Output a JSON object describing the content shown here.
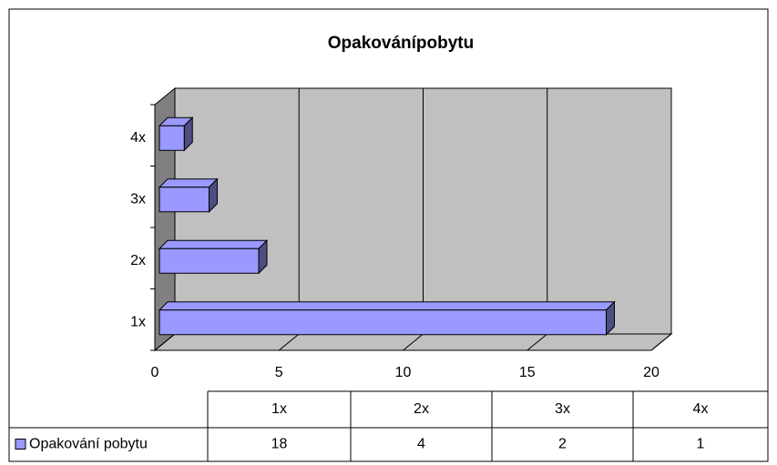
{
  "chart_data": {
    "type": "bar",
    "orientation": "horizontal",
    "three_d": true,
    "title": "Opakovánípobytu",
    "categories": [
      "1x",
      "2x",
      "3x",
      "4x"
    ],
    "series": [
      {
        "name": "Opakování pobytu",
        "color": "#9999ff",
        "values": [
          18,
          4,
          2,
          1
        ]
      }
    ],
    "xlim": [
      0,
      20
    ],
    "xticks": [
      0,
      5,
      10,
      15,
      20
    ],
    "grid": true,
    "data_table": true
  }
}
